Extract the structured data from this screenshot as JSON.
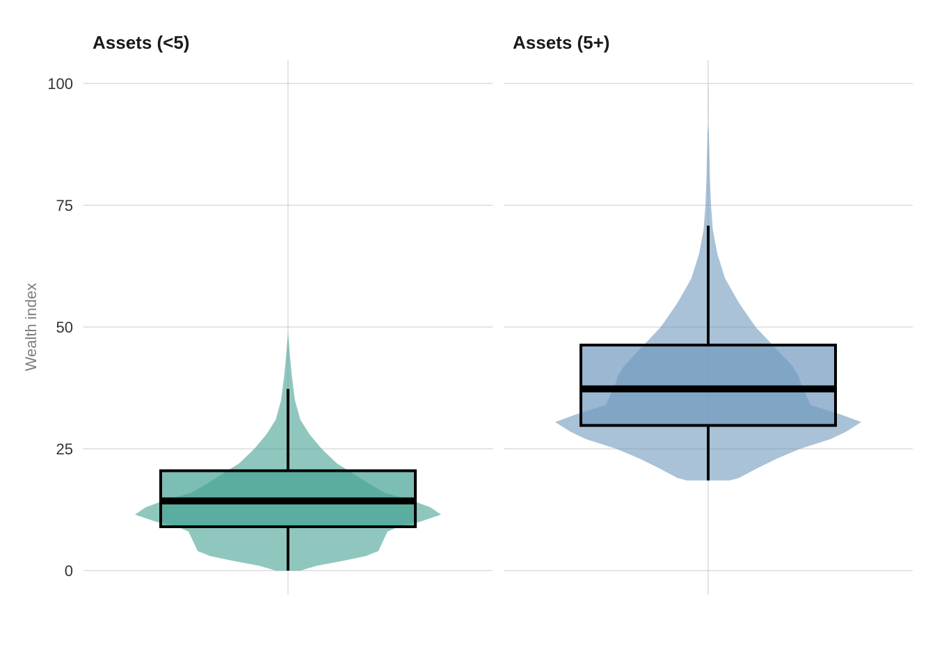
{
  "chart_data": {
    "type": "violin",
    "ylabel": "Wealth index",
    "xlabel": "",
    "ylim": [
      0,
      100
    ],
    "yticks": [
      0,
      25,
      50,
      75,
      100
    ],
    "grid": true,
    "panels": [
      {
        "title": "Assets (<5)",
        "color": "#45a293",
        "min": 0,
        "max": 49,
        "box": {
          "whisker_low": 0,
          "q1": 9,
          "median": 14.3,
          "q3": 20.5,
          "whisker_high": 37.3
        },
        "density_profile": [
          [
            0,
            0.08
          ],
          [
            1,
            0.19
          ],
          [
            2,
            0.36
          ],
          [
            3,
            0.51
          ],
          [
            4,
            0.59
          ],
          [
            6,
            0.62
          ],
          [
            8,
            0.65
          ],
          [
            9,
            0.72
          ],
          [
            10,
            0.86
          ],
          [
            11.5,
            1.0
          ],
          [
            13,
            0.93
          ],
          [
            14.5,
            0.8
          ],
          [
            16,
            0.63
          ],
          [
            18,
            0.52
          ],
          [
            20,
            0.42
          ],
          [
            22,
            0.32
          ],
          [
            25,
            0.22
          ],
          [
            28,
            0.14
          ],
          [
            31,
            0.08
          ],
          [
            35,
            0.045
          ],
          [
            40,
            0.025
          ],
          [
            45,
            0.01
          ],
          [
            49,
            0.0
          ]
        ]
      },
      {
        "title": "Assets (5+)",
        "color": "#7099bd",
        "min": 18.5,
        "max": 100,
        "box": {
          "whisker_low": 18.5,
          "q1": 29.8,
          "median": 37.3,
          "q3": 46.3,
          "whisker_high": 70.8
        },
        "density_profile": [
          [
            18.5,
            0.14
          ],
          [
            19,
            0.2
          ],
          [
            21,
            0.32
          ],
          [
            23,
            0.45
          ],
          [
            25,
            0.6
          ],
          [
            27,
            0.8
          ],
          [
            28.5,
            0.9
          ],
          [
            30.5,
            1.0
          ],
          [
            32,
            0.87
          ],
          [
            34,
            0.67
          ],
          [
            36,
            0.64
          ],
          [
            38,
            0.61
          ],
          [
            40,
            0.59
          ],
          [
            42,
            0.55
          ],
          [
            45,
            0.46
          ],
          [
            50,
            0.31
          ],
          [
            55,
            0.2
          ],
          [
            60,
            0.11
          ],
          [
            65,
            0.06
          ],
          [
            70,
            0.03
          ],
          [
            75,
            0.018
          ],
          [
            80,
            0.012
          ],
          [
            85,
            0.008
          ],
          [
            90,
            0.004
          ],
          [
            92,
            0.001
          ],
          [
            95,
            0.002
          ],
          [
            100,
            0.001
          ]
        ]
      }
    ]
  }
}
